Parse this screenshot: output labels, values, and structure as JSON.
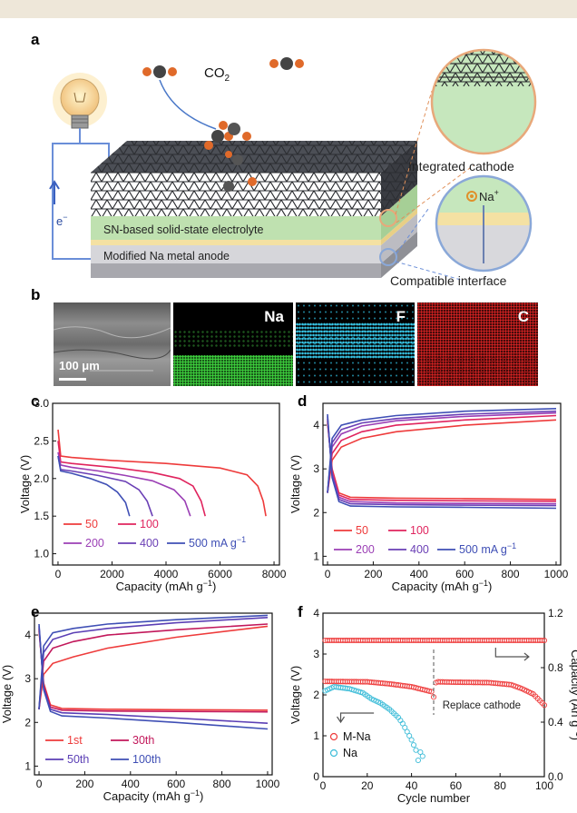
{
  "panels": {
    "a": "a",
    "b": "b",
    "c": "c",
    "d": "d",
    "e": "e",
    "f": "f"
  },
  "schematic": {
    "co2": "CO",
    "co2_sub": "2",
    "electron": "e",
    "electron_sup": "−",
    "electrolyte_label": "SN-based solid-state electrolyte",
    "anode_label": "Modified Na metal anode",
    "cathode_label": "Integrated cathode",
    "interface_label": "Compatible interface",
    "na_ion": "Na",
    "na_sup": "+"
  },
  "sem": {
    "scale_bar": "100 μm",
    "maps": [
      {
        "label": "Na",
        "color": "#3ed23e"
      },
      {
        "label": "F",
        "color": "#38c6e6"
      },
      {
        "label": "C",
        "color": "#ea2626"
      }
    ]
  },
  "chart_data": [
    {
      "panel": "c",
      "type": "line",
      "xlabel": "Capacity (mAh g",
      "xlabel_sup": "−1",
      "xlabel_end": ")",
      "ylabel": "Voltage (V)",
      "xlim": [
        -200,
        8200
      ],
      "ylim": [
        0.85,
        3.0
      ],
      "xticks": [
        0,
        2000,
        4000,
        6000,
        8000
      ],
      "yticks": [
        1.0,
        1.5,
        2.0,
        2.5,
        3.0
      ],
      "legend_position": "bottom-left",
      "series": [
        {
          "name": "50",
          "color": "#ee3b3b",
          "x": [
            0,
            100,
            500,
            2000,
            4000,
            6000,
            7000,
            7400,
            7600,
            7700
          ],
          "y": [
            2.65,
            2.3,
            2.28,
            2.24,
            2.2,
            2.14,
            2.05,
            1.9,
            1.7,
            1.5
          ]
        },
        {
          "name": "100",
          "color": "#e0245e",
          "x": [
            0,
            100,
            500,
            2000,
            3500,
            4500,
            5000,
            5300,
            5450
          ],
          "y": [
            2.5,
            2.22,
            2.2,
            2.15,
            2.08,
            2.0,
            1.9,
            1.7,
            1.5
          ]
        },
        {
          "name": "200",
          "color": "#9b3fb5",
          "x": [
            0,
            100,
            500,
            1500,
            2500,
            3500,
            4300,
            4700,
            4900
          ],
          "y": [
            2.35,
            2.18,
            2.15,
            2.1,
            2.04,
            1.97,
            1.85,
            1.7,
            1.5
          ]
        },
        {
          "name": "400",
          "color": "#6a3fb5",
          "x": [
            0,
            100,
            500,
            1500,
            2500,
            3000,
            3300,
            3500
          ],
          "y": [
            2.3,
            2.12,
            2.1,
            2.04,
            1.96,
            1.85,
            1.7,
            1.5
          ]
        },
        {
          "name": "500 mA g",
          "name_sup": "−1",
          "color": "#3f4fb5",
          "x": [
            0,
            100,
            500,
            1200,
            1800,
            2200,
            2500,
            2650
          ],
          "y": [
            2.3,
            2.1,
            2.07,
            2.0,
            1.92,
            1.82,
            1.68,
            1.5
          ]
        }
      ]
    },
    {
      "panel": "d",
      "type": "line",
      "xlabel": "Capacity (mAh g",
      "xlabel_sup": "−1",
      "xlabel_end": ")",
      "ylabel": "Voltage (V)",
      "xlim": [
        -20,
        1020
      ],
      "ylim": [
        0.8,
        4.5
      ],
      "xticks": [
        0,
        200,
        400,
        600,
        800,
        1000
      ],
      "yticks": [
        1,
        2,
        3,
        4
      ],
      "legend_position": "bottom-left",
      "series": [
        {
          "name": "50",
          "color": "#ee3b3b",
          "charge": {
            "x": [
              0,
              20,
              60,
              150,
              300,
              600,
              1000
            ],
            "y": [
              2.45,
              3.2,
              3.5,
              3.7,
              3.85,
              4.0,
              4.12
            ]
          },
          "discharge": {
            "x": [
              0,
              20,
              50,
              100,
              300,
              600,
              1000
            ],
            "y": [
              4.05,
              3.0,
              2.45,
              2.35,
              2.33,
              2.32,
              2.3
            ]
          }
        },
        {
          "name": "100",
          "color": "#e0245e",
          "charge": {
            "x": [
              0,
              20,
              60,
              150,
              300,
              600,
              1000
            ],
            "y": [
              2.45,
              3.35,
              3.65,
              3.85,
              4.0,
              4.12,
              4.22
            ]
          },
          "discharge": {
            "x": [
              0,
              20,
              50,
              100,
              300,
              600,
              1000
            ],
            "y": [
              4.1,
              2.95,
              2.4,
              2.3,
              2.28,
              2.27,
              2.26
            ]
          }
        },
        {
          "name": "200",
          "color": "#9b3fb5",
          "charge": {
            "x": [
              0,
              20,
              60,
              150,
              300,
              600,
              1000
            ],
            "y": [
              2.45,
              3.5,
              3.8,
              3.98,
              4.1,
              4.2,
              4.28
            ]
          },
          "discharge": {
            "x": [
              0,
              20,
              50,
              100,
              300,
              600,
              1000
            ],
            "y": [
              4.15,
              2.9,
              2.35,
              2.25,
              2.22,
              2.21,
              2.2
            ]
          }
        },
        {
          "name": "400",
          "color": "#6a3fb5",
          "charge": {
            "x": [
              0,
              20,
              60,
              150,
              300,
              600,
              1000
            ],
            "y": [
              2.45,
              3.6,
              3.9,
              4.05,
              4.15,
              4.25,
              4.32
            ]
          },
          "discharge": {
            "x": [
              0,
              20,
              50,
              100,
              300,
              600,
              1000
            ],
            "y": [
              4.2,
              2.85,
              2.3,
              2.2,
              2.18,
              2.17,
              2.16
            ]
          }
        },
        {
          "name": "500 mA g",
          "name_sup": "−1",
          "color": "#3f4fb5",
          "charge": {
            "x": [
              0,
              20,
              60,
              150,
              300,
              600,
              1000
            ],
            "y": [
              2.45,
              3.7,
              4.0,
              4.12,
              4.22,
              4.32,
              4.38
            ]
          },
          "discharge": {
            "x": [
              0,
              20,
              50,
              100,
              300,
              600,
              1000
            ],
            "y": [
              4.25,
              2.8,
              2.25,
              2.15,
              2.13,
              2.12,
              2.1
            ]
          }
        }
      ]
    },
    {
      "panel": "e",
      "type": "line",
      "xlabel": "Capacity (mAh g",
      "xlabel_sup": "−1",
      "xlabel_end": ")",
      "ylabel": "Voltage (V)",
      "xlim": [
        -20,
        1020
      ],
      "ylim": [
        0.8,
        4.5
      ],
      "xticks": [
        0,
        200,
        400,
        600,
        800,
        1000
      ],
      "yticks": [
        1,
        2,
        3,
        4
      ],
      "legend_position": "bottom-left",
      "series": [
        {
          "name": "1st",
          "color": "#ee3b3b",
          "charge": {
            "x": [
              0,
              20,
              60,
              150,
              300,
              600,
              1000
            ],
            "y": [
              2.3,
              3.1,
              3.35,
              3.5,
              3.7,
              3.95,
              4.2
            ]
          },
          "discharge": {
            "x": [
              0,
              20,
              50,
              100,
              300,
              600,
              1000
            ],
            "y": [
              4.1,
              2.9,
              2.4,
              2.32,
              2.3,
              2.29,
              2.28
            ]
          }
        },
        {
          "name": "30th",
          "color": "#c2185b",
          "charge": {
            "x": [
              0,
              20,
              60,
              150,
              300,
              600,
              1000
            ],
            "y": [
              2.3,
              3.4,
              3.7,
              3.85,
              4.0,
              4.12,
              4.25
            ]
          },
          "discharge": {
            "x": [
              0,
              20,
              50,
              100,
              300,
              600,
              1000
            ],
            "y": [
              4.15,
              2.85,
              2.35,
              2.28,
              2.26,
              2.25,
              2.24
            ]
          }
        },
        {
          "name": "50th",
          "color": "#5b3fb5",
          "charge": {
            "x": [
              0,
              20,
              60,
              150,
              300,
              600,
              1000
            ],
            "y": [
              2.3,
              3.6,
              3.9,
              4.05,
              4.15,
              4.28,
              4.4
            ]
          },
          "discharge": {
            "x": [
              0,
              20,
              50,
              100,
              300,
              600,
              1000
            ],
            "y": [
              4.2,
              2.8,
              2.3,
              2.22,
              2.18,
              2.1,
              1.98
            ]
          }
        },
        {
          "name": "100th",
          "color": "#3f4fb5",
          "charge": {
            "x": [
              0,
              20,
              60,
              150,
              300,
              600,
              1000
            ],
            "y": [
              2.3,
              3.75,
              4.05,
              4.15,
              4.25,
              4.35,
              4.45
            ]
          },
          "discharge": {
            "x": [
              0,
              20,
              50,
              100,
              300,
              600,
              1000
            ],
            "y": [
              4.25,
              2.75,
              2.25,
              2.15,
              2.1,
              2.0,
              1.85
            ]
          }
        }
      ]
    },
    {
      "panel": "f",
      "type": "scatter",
      "xlabel": "Cycle number",
      "ylabel": "Voltage (V)",
      "y2label": "Capacity (Ah g",
      "y2label_sup": "−1",
      "y2label_end": ")",
      "xlim": [
        0,
        100
      ],
      "ylim": [
        0,
        4
      ],
      "y2lim": [
        0.0,
        1.2
      ],
      "xticks": [
        0,
        20,
        40,
        60,
        80,
        100
      ],
      "yticks": [
        0,
        1,
        2,
        3,
        4
      ],
      "y2ticks": [
        0.0,
        0.4,
        0.8,
        1.2
      ],
      "legend_position": "bottom-left",
      "annotation": "Replace cathode",
      "marker_at_cycle": 50,
      "capacity": {
        "color": "#ee3b3b",
        "value": 1.0,
        "x_range": [
          1,
          100
        ]
      },
      "series": [
        {
          "name": "M-Na",
          "color": "#ee3b3b",
          "axis": "voltage",
          "x_range": [
            1,
            100
          ],
          "key_x": [
            1,
            20,
            30,
            40,
            49,
            50,
            51,
            52,
            60,
            75,
            85,
            90,
            95,
            100
          ],
          "key_y": [
            2.33,
            2.32,
            2.27,
            2.2,
            2.08,
            1.95,
            2.3,
            2.32,
            2.31,
            2.3,
            2.25,
            2.15,
            2.02,
            1.75
          ]
        },
        {
          "name": "Na",
          "color": "#3cbcd8",
          "axis": "voltage",
          "x_range": [
            1,
            45
          ],
          "key_x": [
            1,
            5,
            12,
            18,
            22,
            26,
            30,
            34,
            36,
            38,
            40,
            42,
            43,
            44,
            45
          ],
          "key_y": [
            2.1,
            2.2,
            2.15,
            2.05,
            1.9,
            1.8,
            1.65,
            1.45,
            1.3,
            1.1,
            0.9,
            0.65,
            0.4,
            0.6,
            0.5
          ]
        }
      ]
    }
  ]
}
